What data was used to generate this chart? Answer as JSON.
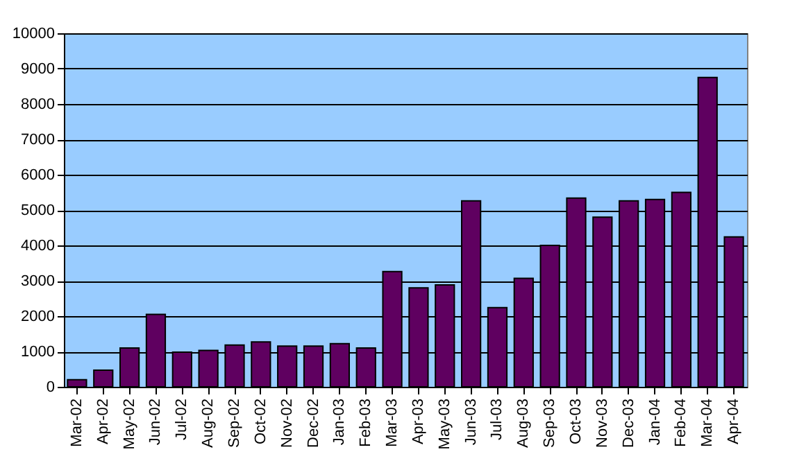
{
  "chart_data": {
    "type": "bar",
    "categories": [
      "Mar-02",
      "Apr-02",
      "May-02",
      "Jun-02",
      "Jul-02",
      "Aug-02",
      "Sep-02",
      "Oct-02",
      "Nov-02",
      "Dec-02",
      "Jan-03",
      "Feb-03",
      "Mar-03",
      "Apr-03",
      "May-03",
      "Jun-03",
      "Jul-03",
      "Aug-03",
      "Sep-03",
      "Oct-03",
      "Nov-03",
      "Dec-03",
      "Jan-04",
      "Feb-04",
      "Mar-04",
      "Apr-04"
    ],
    "values": [
      200,
      470,
      1100,
      2050,
      980,
      1030,
      1180,
      1270,
      1150,
      1150,
      1220,
      1100,
      3260,
      2800,
      2880,
      5260,
      2240,
      3070,
      4000,
      5340,
      4800,
      5260,
      5300,
      5500,
      8750,
      4240
    ],
    "color": "#5f0060",
    "ylim": [
      0,
      10000
    ],
    "yticks": [
      0,
      1000,
      2000,
      3000,
      4000,
      5000,
      6000,
      7000,
      8000,
      9000,
      10000
    ],
    "grid": "y"
  }
}
